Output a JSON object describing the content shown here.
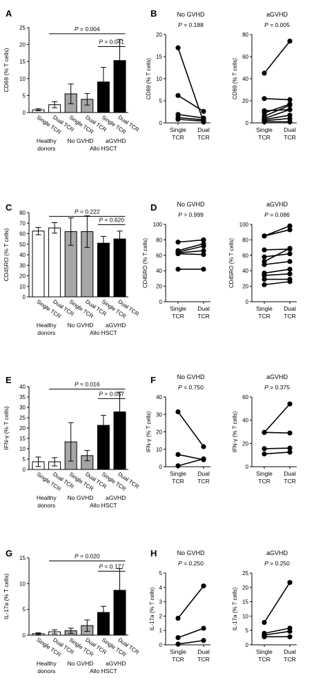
{
  "colors": {
    "healthy": "#ffffff",
    "no_gvhd": "#a6a6a6",
    "agvhd": "#000000",
    "axis": "#000000"
  },
  "group_labels": {
    "healthy": "Healthy donors",
    "healthy_line1": "Healthy",
    "healthy_line2": "donors",
    "no_gvhd": "No GVHD",
    "agvhd": "aGVHD",
    "allo": "Allo HSCT"
  },
  "chart_data": [
    {
      "panel": "A",
      "type": "bar",
      "ylabel": "CD69 (% T cells)",
      "ylim": [
        0,
        25
      ],
      "yticks": [
        0,
        5,
        10,
        15,
        20,
        25
      ],
      "categories": [
        "Single TCR",
        "Dual TCR",
        "Single TCR",
        "Dual TCR",
        "Single TCR",
        "Dual TCR"
      ],
      "groups": [
        "healthy",
        "healthy",
        "no_gvhd",
        "no_gvhd",
        "agvhd",
        "agvhd"
      ],
      "values": [
        0.8,
        2.3,
        5.5,
        3.9,
        9.0,
        15.3
      ],
      "errors": [
        0.3,
        0.9,
        2.9,
        1.7,
        4.3,
        6.2
      ],
      "comparisons": [
        {
          "label": "P = 0.004",
          "from": 1,
          "to": 5,
          "y": 23.2
        },
        {
          "label": "P = 0.041",
          "from": 4,
          "to": 5,
          "y": 19.4
        }
      ]
    },
    {
      "panel": "B",
      "type": "line",
      "ylabel": "CD69 (% T cells)",
      "subplots": [
        {
          "title": "No GVHD",
          "p": "P = 0.188",
          "ylim": [
            0,
            20
          ],
          "yticks": [
            0,
            5,
            10,
            15,
            20
          ],
          "x": [
            "Single TCR",
            "Dual TCR"
          ],
          "pairs": [
            [
              17,
              0.2
            ],
            [
              6.2,
              2.6
            ],
            [
              1.9,
              1.1
            ],
            [
              1.2,
              0.7
            ],
            [
              0.8,
              0.4
            ]
          ]
        },
        {
          "title": "aGVHD",
          "p": "P = 0.005",
          "ylim": [
            0,
            80
          ],
          "yticks": [
            0,
            20,
            40,
            60,
            80
          ],
          "x": [
            "Single TCR",
            "Dual TCR"
          ],
          "pairs": [
            [
              45,
              74
            ],
            [
              22,
              21
            ],
            [
              11,
              12
            ],
            [
              9,
              17
            ],
            [
              6,
              16
            ],
            [
              4,
              12
            ],
            [
              3,
              7
            ],
            [
              2,
              4
            ],
            [
              1,
              1
            ]
          ]
        }
      ]
    },
    {
      "panel": "C",
      "type": "bar",
      "ylabel": "CD45RO (% T cells)",
      "ylim": [
        0,
        80
      ],
      "yticks": [
        0,
        10,
        20,
        30,
        40,
        50,
        60,
        70,
        80
      ],
      "categories": [
        "Single TCR",
        "Dual TCR",
        "Single TCR",
        "Dual TCR",
        "Single TCR",
        "Dual TCR"
      ],
      "groups": [
        "healthy",
        "healthy",
        "no_gvhd",
        "no_gvhd",
        "agvhd",
        "agvhd"
      ],
      "values": [
        62.5,
        65.5,
        62,
        62,
        51,
        55
      ],
      "errors": [
        3.5,
        5,
        13,
        15,
        6.5,
        7.5
      ],
      "comparisons": [
        {
          "label": "P = 0.222",
          "from": 1,
          "to": 5,
          "y": 76.5
        },
        {
          "label": "P = 0.620",
          "from": 4,
          "to": 5,
          "y": 68.5
        }
      ]
    },
    {
      "panel": "D",
      "type": "line",
      "ylabel": "CD45RO (% T cells)",
      "subplots": [
        {
          "title": "No GVHD",
          "p": "P > 0.999",
          "ylim": [
            0,
            100
          ],
          "yticks": [
            0,
            20,
            40,
            60,
            80,
            100
          ],
          "x": [
            "Single TCR",
            "Dual TCR"
          ],
          "pairs": [
            [
              77,
              80
            ],
            [
              66,
              75
            ],
            [
              64,
              72
            ],
            [
              63,
              66
            ],
            [
              62,
              61
            ],
            [
              42,
              42
            ]
          ]
        },
        {
          "title": "aGVHD",
          "p": "P = 0.086",
          "ylim": [
            0,
            100
          ],
          "yticks": [
            0,
            20,
            40,
            60,
            80,
            100
          ],
          "x": [
            "Single TCR",
            "Dual TCR"
          ],
          "pairs": [
            [
              85,
              98
            ],
            [
              85,
              93
            ],
            [
              67,
              68
            ],
            [
              58,
              62
            ],
            [
              52,
              69
            ],
            [
              48,
              52
            ],
            [
              37,
              42
            ],
            [
              34,
              36
            ],
            [
              29,
              29
            ],
            [
              22,
              26
            ]
          ]
        }
      ]
    },
    {
      "panel": "E",
      "type": "bar",
      "ylabel": "IFN-γ (% T cells)",
      "ylim": [
        0,
        40
      ],
      "yticks": [
        0,
        5,
        10,
        15,
        20,
        25,
        30,
        35,
        40
      ],
      "categories": [
        "Single TCR",
        "Dual TCR",
        "Single TCR",
        "Dual TCR",
        "Single TCR",
        "Dual TCR"
      ],
      "groups": [
        "healthy",
        "healthy",
        "no_gvhd",
        "no_gvhd",
        "agvhd",
        "agvhd"
      ],
      "values": [
        3.7,
        3.7,
        13.3,
        6.7,
        21.3,
        27.8
      ],
      "errors": [
        2.3,
        2,
        9.3,
        2.5,
        4.8,
        9.5
      ],
      "comparisons": [
        {
          "label": "P = 0.016",
          "from": 1,
          "to": 5,
          "y": 38.8
        },
        {
          "label": "P = 0.057",
          "from": 4,
          "to": 5,
          "y": 34.2
        }
      ]
    },
    {
      "panel": "F",
      "type": "line",
      "ylabel": "IFN-γ (% T cells)",
      "subplots": [
        {
          "title": "No GVHD",
          "p": "P = 0.750",
          "ylim": [
            0,
            40
          ],
          "yticks": [
            0,
            10,
            20,
            30,
            40
          ],
          "x": [
            "Single TCR",
            "Dual TCR"
          ],
          "pairs": [
            [
              31.5,
              11.5
            ],
            [
              7,
              4
            ],
            [
              0.5,
              4.5
            ]
          ]
        },
        {
          "title": "aGVHD",
          "p": "P = 0.375",
          "ylim": [
            0,
            60
          ],
          "yticks": [
            0,
            20,
            40,
            60
          ],
          "x": [
            "Single TCR",
            "Dual TCR"
          ],
          "pairs": [
            [
              29.5,
              54
            ],
            [
              29.5,
              29
            ],
            [
              15.5,
              16
            ],
            [
              11,
              12.5
            ]
          ]
        }
      ]
    },
    {
      "panel": "G",
      "type": "bar",
      "ylabel": "IL-17a (% T cells)",
      "ylim": [
        0,
        15
      ],
      "yticks": [
        0,
        5,
        10,
        15
      ],
      "categories": [
        "Single TCR",
        "Dual TCR",
        "Single TCR",
        "Dual TCR",
        "Single TCR",
        "Dual TCR"
      ],
      "groups": [
        "healthy",
        "healthy",
        "no_gvhd",
        "no_gvhd",
        "agvhd",
        "agvhd"
      ],
      "values": [
        0.3,
        0.65,
        0.85,
        1.85,
        4.4,
        8.7
      ],
      "errors": [
        0.15,
        0.4,
        0.5,
        1.1,
        1.2,
        4.2
      ],
      "comparisons": [
        {
          "label": "P = 0.020",
          "from": 1,
          "to": 5,
          "y": 14.4
        },
        {
          "label": "P = 0.177",
          "from": 4,
          "to": 5,
          "y": 12.4
        }
      ]
    },
    {
      "panel": "H",
      "type": "line",
      "ylabel": "IL-17a (% T cells)",
      "subplots": [
        {
          "title": "No GVHD",
          "p": "P = 0.250",
          "ylim": [
            0,
            5
          ],
          "yticks": [
            0,
            1,
            2,
            3,
            4,
            5
          ],
          "x": [
            "Single TCR",
            "Dual TCR"
          ],
          "pairs": [
            [
              1.85,
              4.1
            ],
            [
              0.5,
              1.15
            ],
            [
              0.05,
              0.3
            ]
          ]
        },
        {
          "title": "aGVHD",
          "p": "P = 0.250",
          "ylim": [
            0,
            25
          ],
          "yticks": [
            0,
            5,
            10,
            15,
            20,
            25
          ],
          "x": [
            "Single TCR",
            "Dual TCR"
          ],
          "pairs": [
            [
              7.8,
              21.7
            ],
            [
              4,
              5.8
            ],
            [
              3.4,
              4.7
            ],
            [
              2.8,
              2.8
            ]
          ]
        }
      ]
    }
  ]
}
